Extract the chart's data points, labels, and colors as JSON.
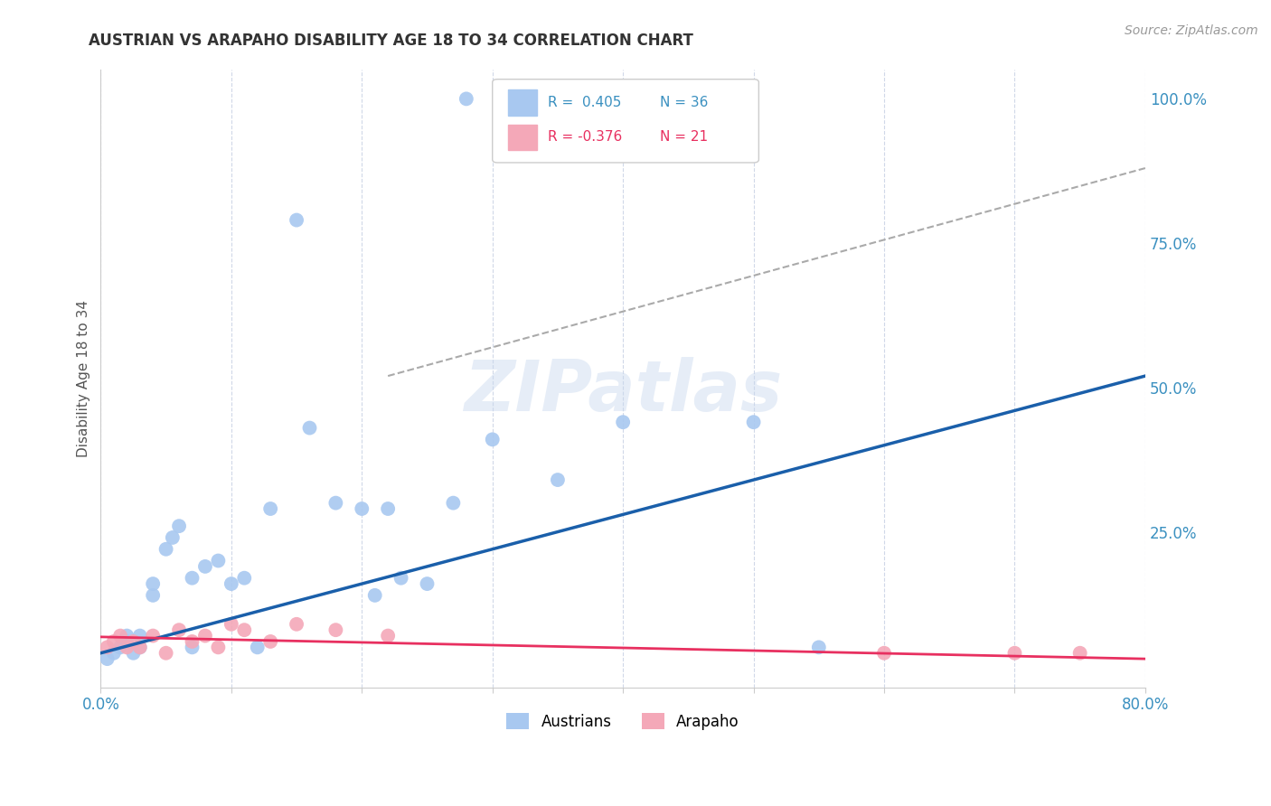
{
  "title": "AUSTRIAN VS ARAPAHO DISABILITY AGE 18 TO 34 CORRELATION CHART",
  "source": "Source: ZipAtlas.com",
  "ylabel": "Disability Age 18 to 34",
  "xlim": [
    0.0,
    0.8
  ],
  "ylim": [
    -0.02,
    1.05
  ],
  "xticks": [
    0.0,
    0.1,
    0.2,
    0.3,
    0.4,
    0.5,
    0.6,
    0.7,
    0.8
  ],
  "xticklabels": [
    "0.0%",
    "",
    "",
    "",
    "",
    "",
    "",
    "",
    "80.0%"
  ],
  "yticks_right": [
    0.0,
    0.25,
    0.5,
    0.75,
    1.0
  ],
  "yticklabels_right": [
    "",
    "25.0%",
    "50.0%",
    "75.0%",
    "100.0%"
  ],
  "austrians_color": "#a8c8f0",
  "arapaho_color": "#f4a8b8",
  "trendline_austrians_color": "#1a5faa",
  "trendline_arapaho_color": "#e83060",
  "trendline_dashed_color": "#aaaaaa",
  "watermark": "ZIPatlas",
  "background_color": "#ffffff",
  "grid_color": "#d0d8e8",
  "austrians_x": [
    0.005,
    0.01,
    0.015,
    0.02,
    0.02,
    0.025,
    0.03,
    0.03,
    0.04,
    0.04,
    0.05,
    0.055,
    0.06,
    0.07,
    0.07,
    0.08,
    0.09,
    0.1,
    0.11,
    0.12,
    0.13,
    0.15,
    0.16,
    0.18,
    0.2,
    0.21,
    0.22,
    0.23,
    0.25,
    0.27,
    0.3,
    0.35,
    0.4,
    0.5,
    0.55,
    0.28
  ],
  "austrians_y": [
    0.03,
    0.04,
    0.05,
    0.06,
    0.07,
    0.04,
    0.05,
    0.07,
    0.14,
    0.16,
    0.22,
    0.24,
    0.26,
    0.05,
    0.17,
    0.19,
    0.2,
    0.16,
    0.17,
    0.05,
    0.29,
    0.79,
    0.43,
    0.3,
    0.29,
    0.14,
    0.29,
    0.17,
    0.16,
    0.3,
    0.41,
    0.34,
    0.44,
    0.44,
    0.05,
    1.0
  ],
  "arapaho_x": [
    0.005,
    0.01,
    0.015,
    0.02,
    0.025,
    0.03,
    0.04,
    0.05,
    0.06,
    0.07,
    0.08,
    0.09,
    0.1,
    0.11,
    0.13,
    0.15,
    0.18,
    0.22,
    0.6,
    0.7,
    0.75
  ],
  "arapaho_y": [
    0.05,
    0.06,
    0.07,
    0.05,
    0.06,
    0.05,
    0.07,
    0.04,
    0.08,
    0.06,
    0.07,
    0.05,
    0.09,
    0.08,
    0.06,
    0.09,
    0.08,
    0.07,
    0.04,
    0.04,
    0.04
  ],
  "austrians_trend_x": [
    0.0,
    0.8
  ],
  "austrians_trend_y": [
    0.04,
    0.52
  ],
  "arapaho_trend_x": [
    0.0,
    0.8
  ],
  "arapaho_trend_y": [
    0.068,
    0.03
  ],
  "dashed_trend_x": [
    0.22,
    0.8
  ],
  "dashed_trend_y": [
    0.52,
    0.88
  ]
}
